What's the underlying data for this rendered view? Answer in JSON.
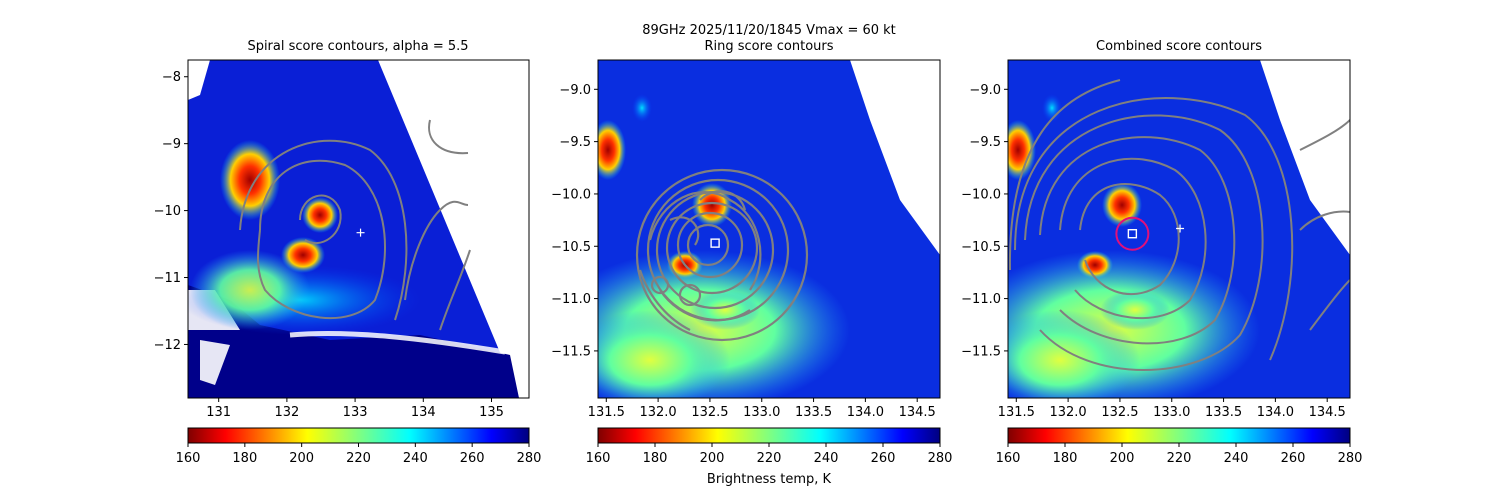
{
  "figure": {
    "suptitle_line1": "89GHz  2025/11/20/1845    Vmax = 60 kt",
    "colorbar_label": "Brightness temp, K"
  },
  "chart_data": [
    {
      "type": "heatmap",
      "title": "Spiral score contours, alpha =  5.5",
      "xlabel": "",
      "ylabel": "",
      "xlim": [
        130.55,
        135.55
      ],
      "ylim": [
        -12.8,
        -7.75
      ],
      "xticks": [
        131,
        132,
        133,
        134,
        135
      ],
      "yticks": [
        -8,
        -9,
        -10,
        -11,
        -12
      ],
      "markers": [
        {
          "kind": "plus",
          "x": 133.08,
          "y": -10.33,
          "color": "#ffffff"
        }
      ],
      "colorbar": {
        "min": 160,
        "max": 280,
        "ticks": [
          160,
          180,
          200,
          220,
          240,
          260,
          280
        ],
        "colormap": "jet_reversed"
      }
    },
    {
      "type": "heatmap",
      "title": "Ring score contours",
      "xlabel": "",
      "ylabel": "",
      "xlim": [
        131.42,
        134.72
      ],
      "ylim": [
        -11.95,
        -8.72
      ],
      "xticks": [
        131.5,
        132.0,
        132.5,
        133.0,
        133.5,
        134.0,
        134.5
      ],
      "yticks": [
        -9.0,
        -9.5,
        -10.0,
        -10.5,
        -11.0,
        -11.5
      ],
      "markers": [
        {
          "kind": "square",
          "x": 132.55,
          "y": -10.47,
          "color": "#ffffff"
        }
      ],
      "colorbar": {
        "min": 160,
        "max": 280,
        "ticks": [
          160,
          180,
          200,
          220,
          240,
          260,
          280
        ],
        "colormap": "jet_reversed"
      }
    },
    {
      "type": "heatmap",
      "title": "Combined score contours",
      "xlabel": "",
      "ylabel": "",
      "xlim": [
        131.42,
        134.72
      ],
      "ylim": [
        -11.95,
        -8.72
      ],
      "xticks": [
        131.5,
        132.0,
        132.5,
        133.0,
        133.5,
        134.0,
        134.5
      ],
      "yticks": [
        -9.0,
        -9.5,
        -10.0,
        -10.5,
        -11.0,
        -11.5
      ],
      "markers": [
        {
          "kind": "plus",
          "x": 133.08,
          "y": -10.33,
          "color": "#ffffff"
        },
        {
          "kind": "square",
          "x": 132.62,
          "y": -10.38,
          "color": "#ffffff"
        },
        {
          "kind": "circle",
          "x": 132.62,
          "y": -10.38,
          "color": "#e0107a"
        }
      ],
      "colorbar": {
        "min": 160,
        "max": 280,
        "ticks": [
          160,
          180,
          200,
          220,
          240,
          260,
          280
        ],
        "colormap": "jet_reversed"
      }
    }
  ]
}
